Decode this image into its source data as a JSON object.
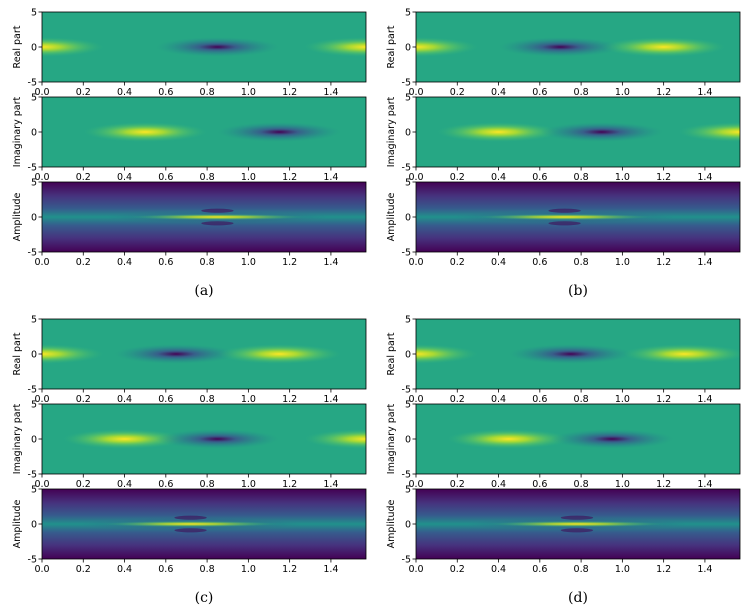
{
  "figure": {
    "description_colormap": "viridis",
    "colors": {
      "background": "#ffffff",
      "axis": "#000000",
      "viridis_low": "#440154",
      "viridis_mid": "#21918c",
      "viridis_high": "#fde725"
    }
  },
  "chart_data": [
    {
      "type": "heatmap",
      "caption": "(a)",
      "panels": [
        {
          "id": "real",
          "ylabel": "Real part",
          "xlim": [
            0,
            1.57
          ],
          "ylim": [
            -5,
            5
          ],
          "xticks": [
            "0.0",
            "0.2",
            "0.4",
            "0.6",
            "0.8",
            "1.0",
            "1.2",
            "1.4"
          ],
          "yticks": [
            "-5",
            "0",
            "5"
          ],
          "features": [
            {
              "x": 0.0,
              "sign": 1
            },
            {
              "x": 0.85,
              "sign": -1
            },
            {
              "x": 1.57,
              "sign": 1
            }
          ]
        },
        {
          "id": "imag",
          "ylabel": "Imaginary part",
          "xlim": [
            0,
            1.57
          ],
          "ylim": [
            -5,
            5
          ],
          "xticks": [
            "0.0",
            "0.2",
            "0.4",
            "0.6",
            "0.8",
            "1.0",
            "1.2",
            "1.4"
          ],
          "yticks": [
            "-5",
            "0",
            "5"
          ],
          "features": [
            {
              "x": 0.5,
              "sign": 1
            },
            {
              "x": 1.15,
              "sign": -1
            }
          ]
        },
        {
          "id": "amp",
          "ylabel": "Amplitude",
          "xlim": [
            0,
            1.57
          ],
          "ylim": [
            -5,
            5
          ],
          "xticks": [
            "0.0",
            "0.2",
            "0.4",
            "0.6",
            "0.8",
            "1.0",
            "1.2",
            "1.4"
          ],
          "yticks": [
            "-5",
            "0",
            "5"
          ],
          "features": [
            {
              "x": 0.85,
              "sign": 1
            }
          ]
        }
      ]
    },
    {
      "type": "heatmap",
      "caption": "(b)",
      "panels": [
        {
          "id": "real",
          "ylabel": "Real part",
          "xlim": [
            0,
            1.57
          ],
          "ylim": [
            -5,
            5
          ],
          "xticks": [
            "0.0",
            "0.2",
            "0.4",
            "0.6",
            "0.8",
            "1.0",
            "1.2",
            "1.4"
          ],
          "yticks": [
            "-5",
            "0",
            "5"
          ],
          "features": [
            {
              "x": 0.0,
              "sign": 1
            },
            {
              "x": 0.7,
              "sign": -1
            },
            {
              "x": 1.2,
              "sign": 1
            }
          ]
        },
        {
          "id": "imag",
          "ylabel": "Imaginary part",
          "xlim": [
            0,
            1.57
          ],
          "ylim": [
            -5,
            5
          ],
          "xticks": [
            "0.0",
            "0.2",
            "0.4",
            "0.6",
            "0.8",
            "1.0",
            "1.2",
            "1.4"
          ],
          "yticks": [
            "-5",
            "0",
            "5"
          ],
          "features": [
            {
              "x": 0.4,
              "sign": 1
            },
            {
              "x": 0.9,
              "sign": -1
            },
            {
              "x": 1.57,
              "sign": 1
            }
          ]
        },
        {
          "id": "amp",
          "ylabel": "Amplitude",
          "xlim": [
            0,
            1.57
          ],
          "ylim": [
            -5,
            5
          ],
          "xticks": [
            "0.0",
            "0.2",
            "0.4",
            "0.6",
            "0.8",
            "1.0",
            "1.2",
            "1.4"
          ],
          "yticks": [
            "-5",
            "0",
            "5"
          ],
          "features": [
            {
              "x": 0.72,
              "sign": 1
            }
          ]
        }
      ]
    },
    {
      "type": "heatmap",
      "caption": "(c)",
      "panels": [
        {
          "id": "real",
          "ylabel": "Real part",
          "xlim": [
            0,
            1.57
          ],
          "ylim": [
            -5,
            5
          ],
          "xticks": [
            "0.0",
            "0.2",
            "0.4",
            "0.6",
            "0.8",
            "1.0",
            "1.2",
            "1.4"
          ],
          "yticks": [
            "-5",
            "0",
            "5"
          ],
          "features": [
            {
              "x": 0.0,
              "sign": 1
            },
            {
              "x": 0.65,
              "sign": -1
            },
            {
              "x": 1.15,
              "sign": 1
            }
          ]
        },
        {
          "id": "imag",
          "ylabel": "Imaginary part",
          "xlim": [
            0,
            1.57
          ],
          "ylim": [
            -5,
            5
          ],
          "xticks": [
            "0.0",
            "0.2",
            "0.4",
            "0.6",
            "0.8",
            "1.0",
            "1.2",
            "1.4"
          ],
          "yticks": [
            "-5",
            "0",
            "5"
          ],
          "features": [
            {
              "x": 0.4,
              "sign": 1
            },
            {
              "x": 0.85,
              "sign": -1
            },
            {
              "x": 1.57,
              "sign": 1
            }
          ]
        },
        {
          "id": "amp",
          "ylabel": "Amplitude",
          "xlim": [
            0,
            1.57
          ],
          "ylim": [
            -5,
            5
          ],
          "xticks": [
            "0.0",
            "0.2",
            "0.4",
            "0.6",
            "0.8",
            "1.0",
            "1.2",
            "1.4"
          ],
          "yticks": [
            "-5",
            "0",
            "5"
          ],
          "features": [
            {
              "x": 0.72,
              "sign": 1
            }
          ]
        }
      ]
    },
    {
      "type": "heatmap",
      "caption": "(d)",
      "panels": [
        {
          "id": "real",
          "ylabel": "Real part",
          "xlim": [
            0,
            1.57
          ],
          "ylim": [
            -5,
            5
          ],
          "xticks": [
            "0.0",
            "0.2",
            "0.4",
            "0.6",
            "0.8",
            "1.0",
            "1.2",
            "1.4"
          ],
          "yticks": [
            "-5",
            "0",
            "5"
          ],
          "features": [
            {
              "x": 0.0,
              "sign": 1
            },
            {
              "x": 0.75,
              "sign": -1
            },
            {
              "x": 1.3,
              "sign": 1
            }
          ]
        },
        {
          "id": "imag",
          "ylabel": "Imaginary part",
          "xlim": [
            0,
            1.57
          ],
          "ylim": [
            -5,
            5
          ],
          "xticks": [
            "0.0",
            "0.2",
            "0.4",
            "0.6",
            "0.8",
            "1.0",
            "1.2",
            "1.4"
          ],
          "yticks": [
            "-5",
            "0",
            "5"
          ],
          "features": [
            {
              "x": 0.45,
              "sign": 1
            },
            {
              "x": 0.95,
              "sign": -1
            }
          ]
        },
        {
          "id": "amp",
          "ylabel": "Amplitude",
          "xlim": [
            0,
            1.57
          ],
          "ylim": [
            -5,
            5
          ],
          "xticks": [
            "0.0",
            "0.2",
            "0.4",
            "0.6",
            "0.8",
            "1.0",
            "1.2",
            "1.4"
          ],
          "yticks": [
            "-5",
            "0",
            "5"
          ],
          "features": [
            {
              "x": 0.78,
              "sign": 1
            }
          ]
        }
      ]
    }
  ]
}
